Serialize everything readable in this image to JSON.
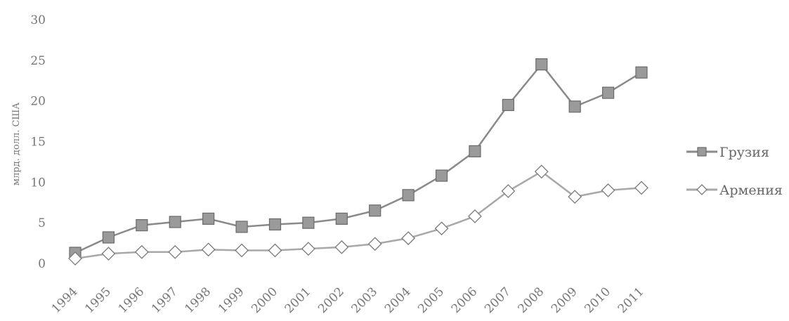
{
  "chart_data": {
    "type": "line",
    "ylabel": "млрд. долл. США",
    "ylim": [
      0,
      30
    ],
    "yticks": [
      0,
      5,
      10,
      15,
      20,
      25,
      30
    ],
    "categories": [
      "1994",
      "1995",
      "1996",
      "1997",
      "1998",
      "1999",
      "2000",
      "2001",
      "2002",
      "2003",
      "2004",
      "2005",
      "2006",
      "2007",
      "2008",
      "2009",
      "2010",
      "2011"
    ],
    "series": [
      {
        "name": "Грузия",
        "color": "#8a8a8a",
        "marker": "square",
        "values": [
          1.3,
          3.2,
          4.7,
          5.1,
          5.5,
          4.5,
          4.8,
          5.0,
          5.5,
          6.5,
          8.4,
          10.8,
          13.8,
          19.5,
          24.5,
          19.3,
          21.0,
          23.5
        ]
      },
      {
        "name": "Армения",
        "color": "#a8a8a8",
        "marker": "diamond",
        "values": [
          0.6,
          1.2,
          1.4,
          1.4,
          1.7,
          1.6,
          1.6,
          1.8,
          2.0,
          2.4,
          3.1,
          4.3,
          5.8,
          8.9,
          11.3,
          8.2,
          9.0,
          9.3
        ]
      }
    ],
    "legend": "right",
    "grid": false
  }
}
